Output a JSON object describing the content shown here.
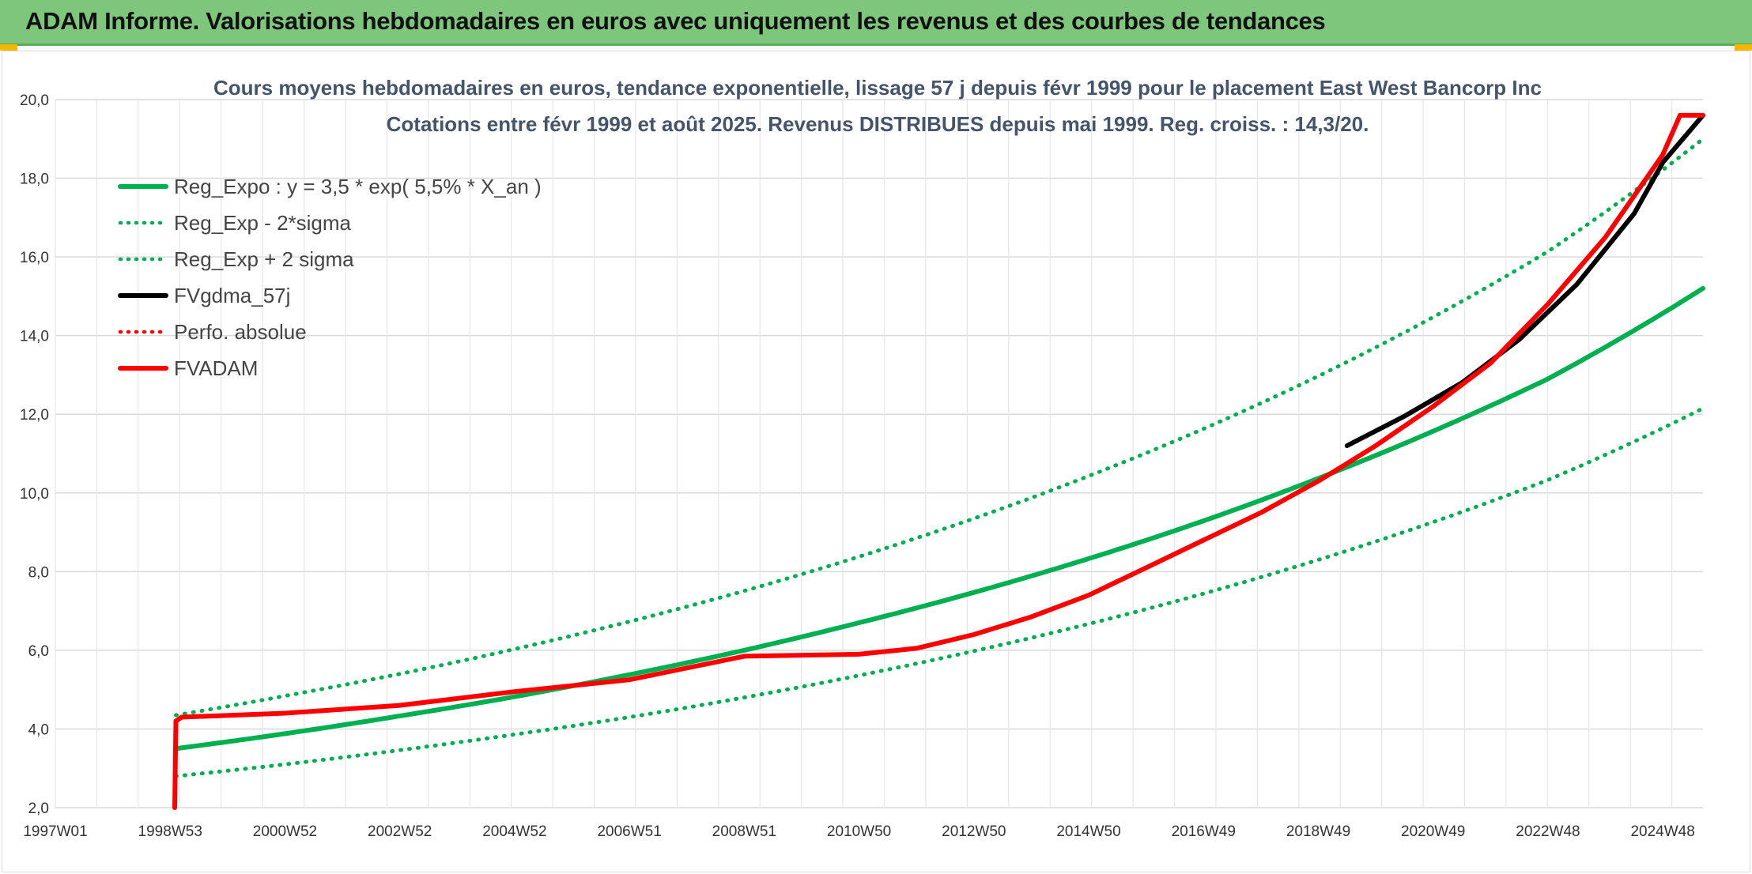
{
  "banner": {
    "title": "ADAM Informe. Valorisations hebdomadaires en euros avec uniquement les revenus et des courbes de tendances"
  },
  "chart_data": {
    "type": "line",
    "title": "Cours moyens hebdomadaires en euros, tendance exponentielle, lissage 57 j depuis févr 1999 pour le placement East West Bancorp Inc",
    "subtitle": "Cotations entre févr 1999 et août 2025. Revenus DISTRIBUES depuis mai 1999. Reg. croiss. : 14,3/20.",
    "xlabel": "",
    "ylabel": "",
    "ylim": [
      2,
      20
    ],
    "yticks": [
      "2,0",
      "4,0",
      "6,0",
      "8,0",
      "10,0",
      "12,0",
      "14,0",
      "16,0",
      "18,0",
      "20,0"
    ],
    "xlim": [
      1997.0,
      2025.7
    ],
    "xticks": [
      {
        "label": "1997W01",
        "x": 1997.0
      },
      {
        "label": "1998W53",
        "x": 1999.0
      },
      {
        "label": "2000W52",
        "x": 2001.0
      },
      {
        "label": "2002W52",
        "x": 2003.0
      },
      {
        "label": "2004W52",
        "x": 2005.0
      },
      {
        "label": "2006W51",
        "x": 2007.0
      },
      {
        "label": "2008W51",
        "x": 2009.0
      },
      {
        "label": "2010W50",
        "x": 2011.0
      },
      {
        "label": "2012W50",
        "x": 2013.0
      },
      {
        "label": "2014W50",
        "x": 2015.0
      },
      {
        "label": "2016W49",
        "x": 2017.0
      },
      {
        "label": "2018W49",
        "x": 2019.0
      },
      {
        "label": "2020W49",
        "x": 2021.0
      },
      {
        "label": "2022W48",
        "x": 2023.0
      },
      {
        "label": "2024W48",
        "x": 2025.0
      }
    ],
    "grid": true,
    "legend_position": "top-left",
    "series": [
      {
        "name": "Reg_Expo : y = 3,5 * exp( 5,5% *  X_an )",
        "color": "#00b050",
        "style": "solid",
        "x": [
          1999.1,
          2001,
          2003,
          2005,
          2007,
          2009,
          2011,
          2013,
          2015,
          2017,
          2019,
          2021,
          2023,
          2025.7
        ],
        "values": [
          3.5,
          3.88,
          4.33,
          4.82,
          5.38,
          6.0,
          6.7,
          7.47,
          8.33,
          9.29,
          10.37,
          11.57,
          12.9,
          15.2
        ]
      },
      {
        "name": "Reg_Exp - 2*sigma",
        "color": "#00b050",
        "style": "dotted",
        "x": [
          1999.1,
          2001,
          2003,
          2005,
          2007,
          2009,
          2011,
          2013,
          2015,
          2017,
          2019,
          2021,
          2023,
          2025.7
        ],
        "values": [
          2.8,
          3.1,
          3.46,
          3.86,
          4.3,
          4.8,
          5.36,
          5.98,
          6.67,
          7.44,
          8.3,
          9.26,
          10.33,
          12.15
        ]
      },
      {
        "name": "Reg_Exp + 2 sigma",
        "color": "#00b050",
        "style": "dotted",
        "x": [
          1999.1,
          2001,
          2003,
          2005,
          2007,
          2009,
          2011,
          2013,
          2015,
          2017,
          2019,
          2021,
          2023,
          2025.7
        ],
        "values": [
          4.35,
          4.84,
          5.4,
          6.03,
          6.73,
          7.51,
          8.38,
          9.35,
          10.43,
          11.63,
          12.97,
          14.47,
          16.14,
          19.0
        ]
      },
      {
        "name": "FVgdma_57j",
        "color": "#000000",
        "style": "solid",
        "x": [
          2019.5,
          2020.5,
          2021.5,
          2022.5,
          2023.5,
          2024.5,
          2025.0,
          2025.7
        ],
        "values": [
          11.2,
          11.95,
          12.8,
          13.9,
          15.3,
          17.1,
          18.4,
          19.6
        ]
      },
      {
        "name": "Perfo. absolue",
        "color": "#ff0000",
        "style": "dotted",
        "x": [],
        "values": []
      },
      {
        "name": "FVADAM",
        "color": "#ff0000",
        "style": "solid",
        "x": [
          1999.08,
          1999.1,
          1999.2,
          2001,
          2003,
          2005,
          2007,
          2009,
          2011,
          2012,
          2013,
          2014,
          2015,
          2016,
          2017,
          2018,
          2019,
          2020,
          2021,
          2022,
          2023,
          2024,
          2025.0,
          2025.3,
          2025.7
        ],
        "values": [
          2.0,
          4.2,
          4.3,
          4.4,
          4.6,
          4.95,
          5.25,
          5.85,
          5.9,
          6.05,
          6.4,
          6.85,
          7.4,
          8.1,
          8.8,
          9.5,
          10.3,
          11.2,
          12.2,
          13.3,
          14.8,
          16.5,
          18.6,
          19.6,
          19.6
        ]
      }
    ]
  }
}
